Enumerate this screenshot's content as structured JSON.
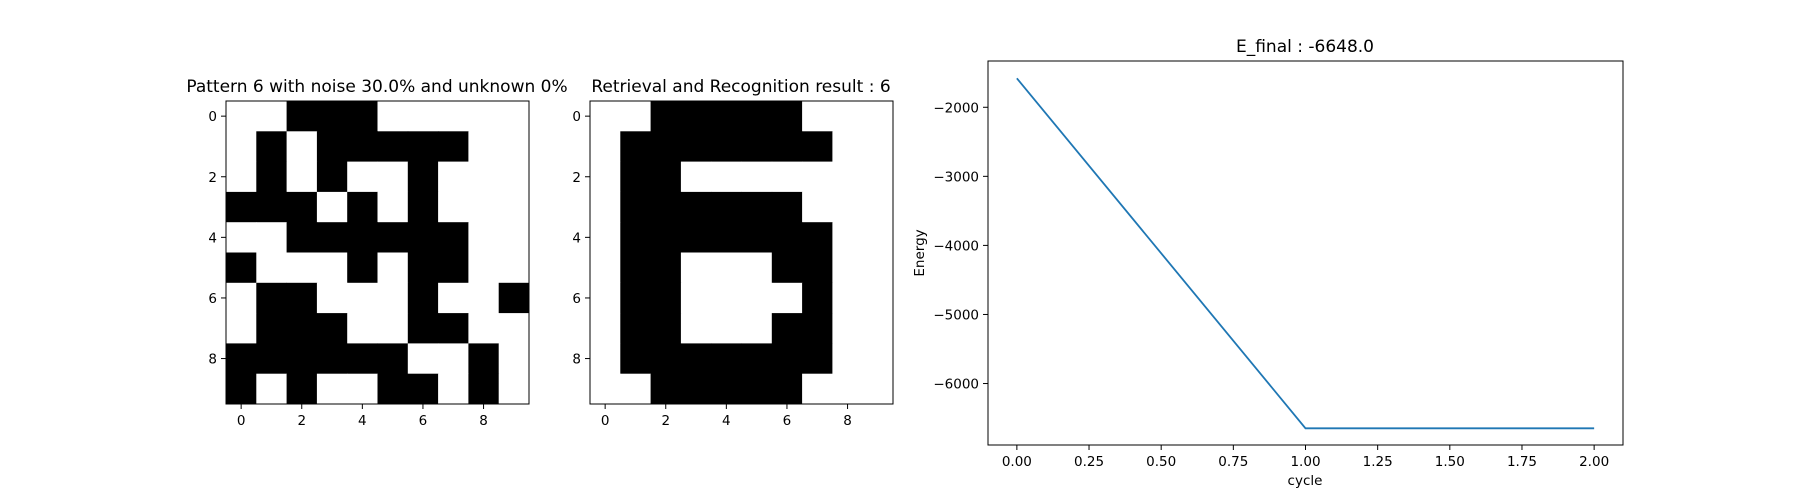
{
  "chart_data": [
    {
      "type": "heatmap",
      "title": "Pattern 6 with noise 30.0% and unknown 0%",
      "colormap": {
        "0": "#ffffff",
        "1": "#000000"
      },
      "xticks": [
        0,
        2,
        4,
        6,
        8
      ],
      "yticks": [
        0,
        2,
        4,
        6,
        8
      ],
      "grid": [
        [
          0,
          0,
          1,
          1,
          1,
          0,
          0,
          0,
          0,
          0
        ],
        [
          0,
          1,
          0,
          1,
          1,
          1,
          1,
          1,
          0,
          0
        ],
        [
          0,
          1,
          0,
          1,
          0,
          0,
          1,
          0,
          0,
          0
        ],
        [
          1,
          1,
          1,
          0,
          1,
          0,
          1,
          0,
          0,
          0
        ],
        [
          0,
          0,
          1,
          1,
          1,
          1,
          1,
          1,
          0,
          0
        ],
        [
          1,
          0,
          0,
          0,
          1,
          0,
          1,
          1,
          0,
          0
        ],
        [
          0,
          1,
          1,
          0,
          0,
          0,
          1,
          0,
          0,
          1
        ],
        [
          0,
          1,
          1,
          1,
          0,
          0,
          1,
          1,
          0,
          0
        ],
        [
          1,
          1,
          1,
          1,
          1,
          1,
          0,
          0,
          1,
          0
        ],
        [
          1,
          0,
          1,
          0,
          0,
          1,
          1,
          0,
          1,
          0
        ]
      ]
    },
    {
      "type": "heatmap",
      "title": "Retrieval and Recognition result : 6",
      "colormap": {
        "0": "#ffffff",
        "1": "#000000"
      },
      "xticks": [
        0,
        2,
        4,
        6,
        8
      ],
      "yticks": [
        0,
        2,
        4,
        6,
        8
      ],
      "grid": [
        [
          0,
          0,
          1,
          1,
          1,
          1,
          1,
          0,
          0,
          0
        ],
        [
          0,
          1,
          1,
          1,
          1,
          1,
          1,
          1,
          0,
          0
        ],
        [
          0,
          1,
          1,
          0,
          0,
          0,
          0,
          0,
          0,
          0
        ],
        [
          0,
          1,
          1,
          1,
          1,
          1,
          1,
          0,
          0,
          0
        ],
        [
          0,
          1,
          1,
          1,
          1,
          1,
          1,
          1,
          0,
          0
        ],
        [
          0,
          1,
          1,
          0,
          0,
          0,
          1,
          1,
          0,
          0
        ],
        [
          0,
          1,
          1,
          0,
          0,
          0,
          0,
          1,
          0,
          0
        ],
        [
          0,
          1,
          1,
          0,
          0,
          0,
          1,
          1,
          0,
          0
        ],
        [
          0,
          1,
          1,
          1,
          1,
          1,
          1,
          1,
          0,
          0
        ],
        [
          0,
          0,
          1,
          1,
          1,
          1,
          1,
          0,
          0,
          0
        ]
      ]
    },
    {
      "type": "line",
      "title": "E_final : -6648.0",
      "xlabel": "cycle",
      "ylabel": "Energy",
      "xlim": [
        -0.1,
        2.1
      ],
      "ylim": [
        -6890,
        -1330
      ],
      "xticks": [
        0.0,
        0.25,
        0.5,
        0.75,
        1.0,
        1.25,
        1.5,
        1.75,
        2.0
      ],
      "xtick_labels": [
        "0.00",
        "0.25",
        "0.50",
        "0.75",
        "1.00",
        "1.25",
        "1.50",
        "1.75",
        "2.00"
      ],
      "yticks": [
        -2000,
        -3000,
        -4000,
        -5000,
        -6000
      ],
      "ytick_labels": [
        "−2000",
        "−3000",
        "−4000",
        "−5000",
        "−6000"
      ],
      "grid": false,
      "series": [
        {
          "x": [
            0,
            1,
            2
          ],
          "y": [
            -1580,
            -6648,
            -6648
          ],
          "color": "#1f77b4"
        }
      ]
    }
  ]
}
